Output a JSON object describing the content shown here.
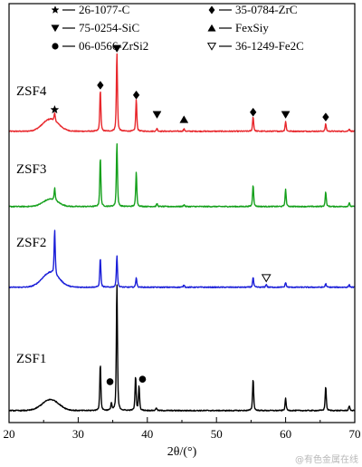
{
  "watermark": "@有色金属在线",
  "chart_data": {
    "type": "line",
    "title": "",
    "xlabel": "2θ/(°)",
    "ylabel": "",
    "xlim": [
      20,
      70
    ],
    "xticks": [
      20,
      30,
      40,
      50,
      60,
      70
    ],
    "grid": false,
    "legend": {
      "placement": "top",
      "entries": [
        {
          "marker": "star",
          "text": "26-1077-C"
        },
        {
          "marker": "diamond",
          "text": "35-0784-ZrC"
        },
        {
          "marker": "triangle-down",
          "text": "75-0254-SiC"
        },
        {
          "marker": "triangle-up",
          "text": "FexSiy"
        },
        {
          "marker": "circle",
          "text": "06-0566-ZrSi2"
        },
        {
          "marker": "triangle-down-open",
          "text": "36-1249-Fe2C"
        }
      ]
    },
    "series": [
      {
        "name": "ZSF4",
        "color": "#e8262b",
        "baseline": 0.012,
        "hump": {
          "center": 26.0,
          "height": 0.05,
          "width": 1.6
        },
        "peaks": [
          [
            26.6,
            0.03
          ],
          [
            33.2,
            0.17
          ],
          [
            35.6,
            0.32
          ],
          [
            38.4,
            0.13
          ],
          [
            41.4,
            0.012
          ],
          [
            45.3,
            0.01
          ],
          [
            55.3,
            0.06
          ],
          [
            60.0,
            0.04
          ],
          [
            65.8,
            0.03
          ],
          [
            69.2,
            0.01
          ]
        ],
        "markers": [
          {
            "x": 26.6,
            "y": 0.1,
            "symbol": "star"
          },
          {
            "x": 33.2,
            "y": 0.2,
            "symbol": "diamond"
          },
          {
            "x": 35.6,
            "y": 0.35,
            "symbol": "triangle-down"
          },
          {
            "x": 38.4,
            "y": 0.16,
            "symbol": "diamond"
          },
          {
            "x": 41.4,
            "y": 0.08,
            "symbol": "triangle-down"
          },
          {
            "x": 45.3,
            "y": 0.06,
            "symbol": "triangle-up"
          },
          {
            "x": 55.3,
            "y": 0.09,
            "symbol": "diamond"
          },
          {
            "x": 60.0,
            "y": 0.08,
            "symbol": "triangle-down"
          },
          {
            "x": 65.8,
            "y": 0.07,
            "symbol": "diamond"
          }
        ]
      },
      {
        "name": "ZSF3",
        "color": "#14a01b",
        "baseline": 0.012,
        "hump": {
          "center": 26.0,
          "height": 0.03,
          "width": 1.5
        },
        "peaks": [
          [
            26.6,
            0.05
          ],
          [
            33.2,
            0.2
          ],
          [
            35.6,
            0.26
          ],
          [
            38.4,
            0.14
          ],
          [
            41.4,
            0.012
          ],
          [
            45.3,
            0.008
          ],
          [
            55.3,
            0.09
          ],
          [
            60.0,
            0.07
          ],
          [
            65.8,
            0.06
          ],
          [
            69.2,
            0.015
          ]
        ],
        "markers": []
      },
      {
        "name": "ZSF2",
        "color": "#1a1ed8",
        "baseline": 0.012,
        "hump": {
          "center": 26.0,
          "height": 0.06,
          "width": 1.7
        },
        "peaks": [
          [
            26.6,
            0.18
          ],
          [
            33.2,
            0.12
          ],
          [
            35.6,
            0.13
          ],
          [
            38.4,
            0.04
          ],
          [
            45.3,
            0.01
          ],
          [
            55.3,
            0.04
          ],
          [
            57.2,
            0.012
          ],
          [
            60.0,
            0.02
          ],
          [
            65.8,
            0.015
          ],
          [
            69.2,
            0.01
          ]
        ],
        "markers": [
          {
            "x": 57.2,
            "y": 0.05,
            "symbol": "triangle-down-open"
          }
        ]
      },
      {
        "name": "ZSF1",
        "color": "#000000",
        "baseline": 0.012,
        "hump": {
          "center": 26.0,
          "height": 0.045,
          "width": 1.7
        },
        "peaks": [
          [
            33.2,
            0.19
          ],
          [
            34.8,
            0.03
          ],
          [
            35.6,
            0.52
          ],
          [
            38.3,
            0.14
          ],
          [
            38.8,
            0.1
          ],
          [
            41.3,
            0.012
          ],
          [
            55.3,
            0.13
          ],
          [
            60.0,
            0.05
          ],
          [
            65.8,
            0.1
          ],
          [
            69.2,
            0.02
          ]
        ],
        "markers": [
          {
            "x": 34.6,
            "y": 0.13,
            "symbol": "circle"
          },
          {
            "x": 39.3,
            "y": 0.14,
            "symbol": "circle"
          }
        ]
      }
    ]
  }
}
